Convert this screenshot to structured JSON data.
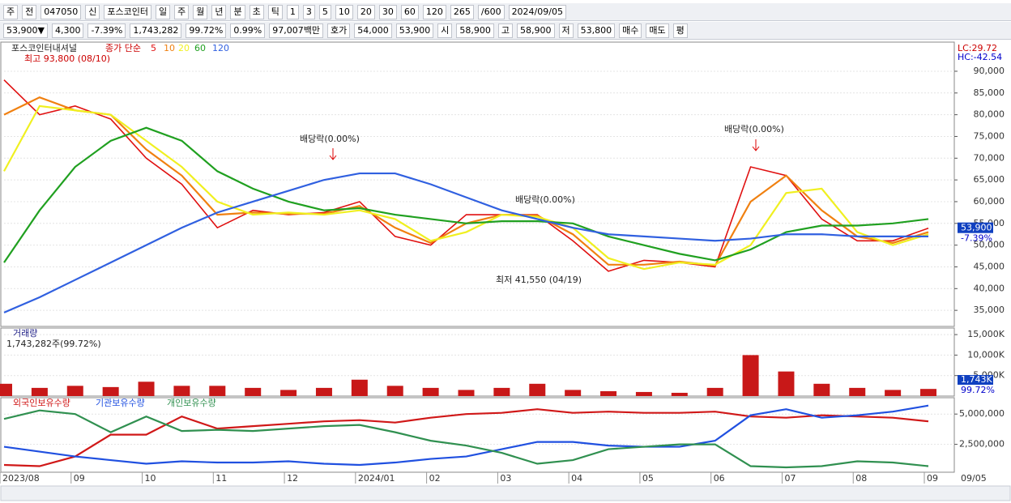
{
  "toolbar": {
    "row1": [
      "주",
      "전",
      "047050",
      "신",
      "포스코인터",
      "일",
      "주",
      "월",
      "년",
      "분",
      "초",
      "틱",
      "1",
      "3",
      "5",
      "10",
      "20",
      "30",
      "60",
      "120",
      "265",
      "/600",
      "2024/09/05"
    ],
    "row2": [
      "53,900▼",
      "4,300",
      "-7.39%",
      "1,743,282",
      "99.72%",
      "0.99%",
      "97,007백만",
      "호가",
      "54,000",
      "53,900",
      "시",
      "58,900",
      "고",
      "58,900",
      "저",
      "53,800",
      "매수",
      "매도",
      "평"
    ]
  },
  "chart_data": [
    {
      "type": "line",
      "title": "포스코인터내셔널",
      "subtitle": "종가 단순",
      "categories": [
        "2023/08",
        null,
        "09",
        null,
        "10",
        null,
        "11",
        null,
        "12",
        null,
        "2024/01",
        null,
        "02",
        null,
        "03",
        null,
        "04",
        null,
        "05",
        null,
        "06",
        null,
        "07",
        null,
        "08",
        null,
        "09"
      ],
      "end_label": "09/05",
      "ylim": [
        31300,
        96700
      ],
      "yticks": [
        {
          "value": 35000,
          "label": "35,000"
        },
        {
          "value": 40000,
          "label": "40,000"
        },
        {
          "value": 45000,
          "label": "45,000"
        },
        {
          "value": 50000,
          "label": "50,000"
        },
        {
          "value": 55000,
          "label": "55,000"
        },
        {
          "value": 60000,
          "label": "60,000"
        },
        {
          "value": 65000,
          "label": "65,000"
        },
        {
          "value": 70000,
          "label": "70,000"
        },
        {
          "value": 75000,
          "label": "75,000"
        },
        {
          "value": 80000,
          "label": "80,000"
        },
        {
          "value": 85000,
          "label": "85,000"
        },
        {
          "value": 90000,
          "label": "90,000"
        }
      ],
      "series": [
        {
          "name": "5",
          "color": "#e01010",
          "values": [
            88000,
            80000,
            82000,
            79000,
            70000,
            64000,
            54000,
            58000,
            57000,
            57500,
            60000,
            52000,
            50000,
            57000,
            57000,
            57000,
            51000,
            44000,
            46500,
            46000,
            45000,
            68000,
            66000,
            56000,
            51000,
            51000,
            53900
          ]
        },
        {
          "name": "10",
          "color": "#f08010",
          "values": [
            80000,
            84000,
            81000,
            80000,
            72000,
            66000,
            57000,
            57500,
            57200,
            57200,
            59000,
            54000,
            50500,
            55000,
            57000,
            56800,
            52500,
            45500,
            45500,
            46200,
            45300,
            60000,
            66000,
            58000,
            52000,
            50500,
            53000
          ]
        },
        {
          "name": "20",
          "color": "#f0f020",
          "values": [
            67000,
            82000,
            81000,
            80000,
            74000,
            68000,
            60000,
            57000,
            57500,
            57000,
            58000,
            56000,
            51000,
            53000,
            57000,
            56500,
            54000,
            47000,
            44500,
            46000,
            45500,
            50000,
            62000,
            63000,
            53000,
            50000,
            52500
          ]
        },
        {
          "name": "60",
          "color": "#20a020",
          "values": [
            46000,
            58000,
            68000,
            74000,
            77000,
            74000,
            67000,
            63000,
            60000,
            58000,
            58500,
            57000,
            56000,
            55000,
            55500,
            55500,
            55000,
            52000,
            50000,
            48000,
            46500,
            49000,
            53000,
            54500,
            54500,
            55000,
            56000
          ]
        },
        {
          "name": "120",
          "color": "#3060e0",
          "values": [
            34500,
            38000,
            42000,
            46000,
            50000,
            54000,
            57500,
            60000,
            62500,
            65000,
            66500,
            66500,
            64000,
            61000,
            58000,
            56000,
            54000,
            52500,
            52000,
            51500,
            51000,
            51500,
            52500,
            52500,
            52000,
            52000,
            52000
          ]
        }
      ],
      "annotations": [
        "최고 93,800 (08/10)",
        "배당락(0.00%)",
        "배당락(0.00%)",
        "배당락(0.00%)",
        "최저 41,550 (04/19)",
        "LC:29.72",
        "HC:-42.54"
      ],
      "last_price": {
        "value": 53900,
        "label": "53,900"
      },
      "last_change": "-7.39%"
    },
    {
      "type": "bar",
      "title": "거래량",
      "subtitle": "1,743,282주(99.72%)",
      "color": "#c81818",
      "values": [
        3000,
        2000,
        2500,
        2200,
        3500,
        2500,
        2500,
        2000,
        1500,
        2000,
        4000,
        2500,
        2000,
        1500,
        2000,
        3000,
        1500,
        1200,
        1000,
        800,
        2000,
        10000,
        6000,
        3000,
        2000,
        1500,
        1743
      ],
      "ylim": [
        0,
        16600
      ],
      "yticks": [
        {
          "value": 5000,
          "label": "5,000K"
        },
        {
          "value": 10000,
          "label": "10,000K"
        },
        {
          "value": 15000,
          "label": "15,000K"
        }
      ],
      "last_label": "1,743K",
      "last_ratio": "99.72%"
    },
    {
      "type": "line",
      "ylim": [
        200000,
        6350000
      ],
      "yticks": [
        {
          "value": 2500000,
          "label": "2,500,000"
        },
        {
          "value": 5000000,
          "label": "5,000,000"
        }
      ],
      "series": [
        {
          "name": "외국인보유수량",
          "color": "#d01818",
          "values": [
            800000,
            700000,
            1500000,
            3300000,
            3300000,
            4800000,
            3800000,
            4000000,
            4200000,
            4400000,
            4500000,
            4300000,
            4700000,
            5000000,
            5100000,
            5400000,
            5100000,
            5200000,
            5100000,
            5100000,
            5200000,
            4800000,
            4700000,
            4900000,
            4800000,
            4700000,
            4400000
          ]
        },
        {
          "name": "기관보유수량",
          "color": "#2050e0",
          "values": [
            2300000,
            1900000,
            1500000,
            1200000,
            900000,
            1100000,
            1000000,
            1000000,
            1100000,
            900000,
            800000,
            1000000,
            1300000,
            1500000,
            2100000,
            2700000,
            2700000,
            2400000,
            2300000,
            2300000,
            2800000,
            4900000,
            5400000,
            4700000,
            4900000,
            5200000,
            5700000
          ]
        },
        {
          "name": "개인보유수량",
          "color": "#309050",
          "values": [
            4600000,
            5300000,
            5000000,
            3500000,
            4800000,
            3600000,
            3700000,
            3600000,
            3800000,
            4000000,
            4100000,
            3500000,
            2800000,
            2400000,
            1800000,
            900000,
            1200000,
            2100000,
            2300000,
            2500000,
            2500000,
            700000,
            600000,
            700000,
            1100000,
            1000000,
            700000
          ]
        }
      ]
    }
  ]
}
